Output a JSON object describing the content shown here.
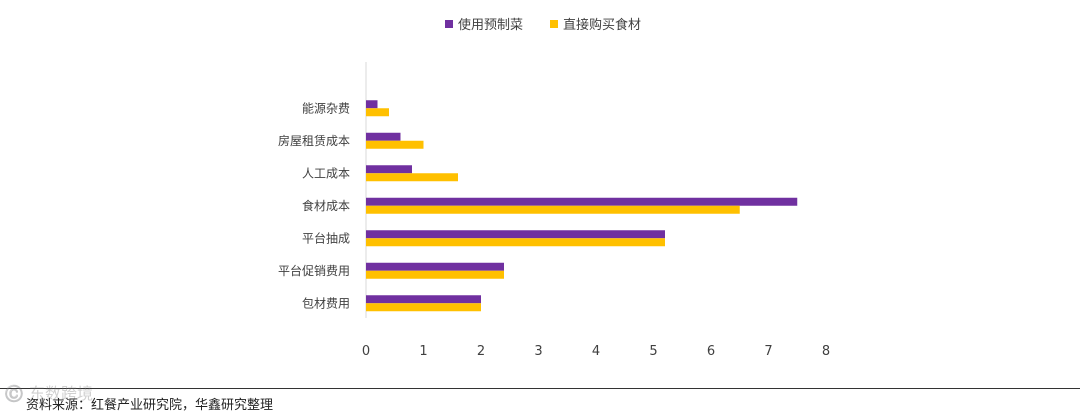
{
  "chart_data": {
    "type": "bar",
    "orientation": "horizontal",
    "categories": [
      "能源杂费",
      "房屋租赁成本",
      "人工成本",
      "食材成本",
      "平台抽成",
      "平台促销费用",
      "包材费用"
    ],
    "series": [
      {
        "name": "使用预制菜",
        "color": "#7030A0",
        "values": [
          0.2,
          0.6,
          0.8,
          7.5,
          5.2,
          2.4,
          2.0
        ]
      },
      {
        "name": "直接购买食材",
        "color": "#FFC000",
        "values": [
          0.4,
          1.0,
          1.6,
          6.5,
          5.2,
          2.4,
          2.0
        ]
      }
    ],
    "xlim": [
      0,
      8
    ],
    "xticks": [
      "0",
      "1",
      "2",
      "3",
      "4",
      "5",
      "6",
      "7",
      "8"
    ],
    "legend_position": "top",
    "grid": false
  },
  "source": "资料来源：红餐产业研究院，华鑫研究整理",
  "watermark": "©️ 东数跨境"
}
